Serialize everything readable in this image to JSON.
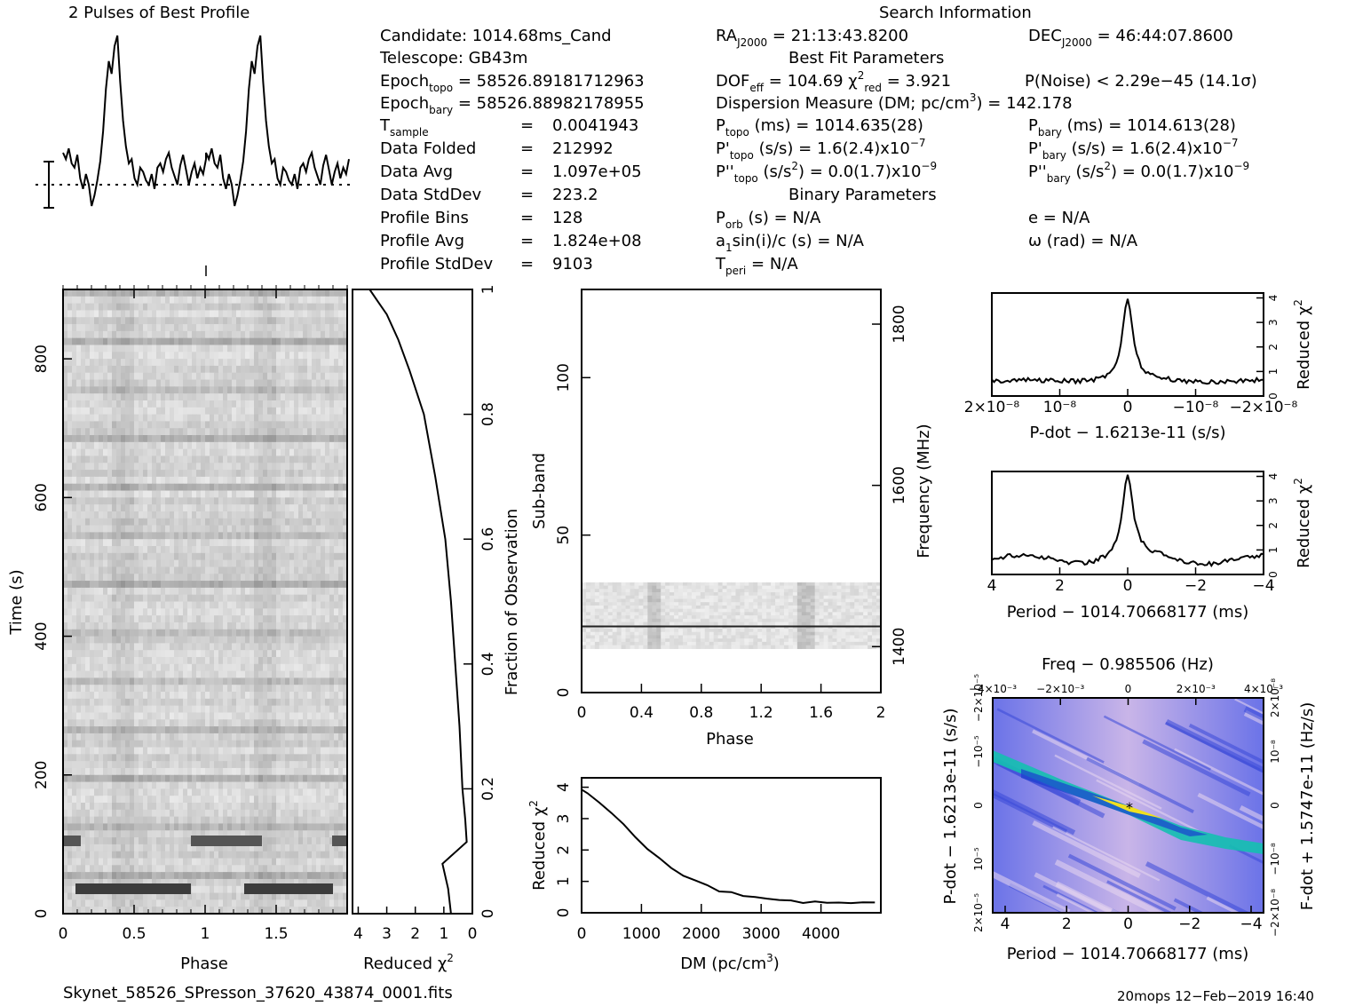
{
  "chart_data": [
    {
      "type": "line",
      "title": "2 Pulses of Best Profile",
      "x": [
        0,
        0.02,
        0.04,
        0.06,
        0.08,
        0.1,
        0.12,
        0.14,
        0.16,
        0.18,
        0.2,
        0.22,
        0.24,
        0.26,
        0.28,
        0.3,
        0.32,
        0.34,
        0.36,
        0.38,
        0.4,
        0.42,
        0.44,
        0.46,
        0.48,
        0.5,
        0.52,
        0.54,
        0.56,
        0.58,
        0.6,
        0.62,
        0.64,
        0.66,
        0.68,
        0.7,
        0.72,
        0.74,
        0.76,
        0.78,
        0.8,
        0.82,
        0.84,
        0.86,
        0.88,
        0.9,
        0.92,
        0.94,
        0.96,
        0.98,
        1.0
      ],
      "values": [
        0.45,
        0.42,
        0.47,
        0.4,
        0.38,
        0.44,
        0.33,
        0.28,
        0.35,
        0.3,
        0.2,
        0.25,
        0.32,
        0.41,
        0.55,
        0.75,
        0.88,
        0.82,
        0.95,
        1.0,
        0.78,
        0.6,
        0.48,
        0.4,
        0.42,
        0.33,
        0.3,
        0.38,
        0.36,
        0.32,
        0.3,
        0.35,
        0.28,
        0.38,
        0.4,
        0.36,
        0.42,
        0.45,
        0.38,
        0.34,
        0.3,
        0.39,
        0.44,
        0.37,
        0.3,
        0.36,
        0.4,
        0.33,
        0.38,
        0.35,
        0.42
      ],
      "pulses": 2
    },
    {
      "type": "heatmap",
      "name": "time-phase",
      "xlabel": "Phase",
      "ylabel": "Time (s)",
      "xticks": [
        "0",
        "0.5",
        "1",
        "1.5"
      ],
      "yticks": [
        "0",
        "200",
        "400",
        "600",
        "800"
      ],
      "xlim": [
        0,
        2
      ],
      "ylim": [
        0,
        900
      ]
    },
    {
      "type": "line",
      "name": "chi2-vs-fraction",
      "xlabel": "Reduced χ²",
      "ylabel": "Fraction of Observation",
      "xticks": [
        "4",
        "3",
        "2",
        "1",
        "0"
      ],
      "yticks": [
        "0",
        "0.2",
        "0.4",
        "0.6",
        "0.8",
        "1"
      ],
      "points": [
        [
          0.75,
          0.0
        ],
        [
          0.85,
          0.04
        ],
        [
          1.05,
          0.08
        ],
        [
          0.2,
          0.115
        ],
        [
          0.25,
          0.15
        ],
        [
          0.35,
          0.2
        ],
        [
          0.45,
          0.3
        ],
        [
          0.6,
          0.4
        ],
        [
          0.75,
          0.5
        ],
        [
          0.95,
          0.6
        ],
        [
          1.3,
          0.7
        ],
        [
          1.7,
          0.8
        ],
        [
          2.2,
          0.87
        ],
        [
          2.6,
          0.92
        ],
        [
          3.0,
          0.96
        ],
        [
          3.3,
          0.98
        ],
        [
          3.6,
          1.0
        ]
      ]
    },
    {
      "type": "heatmap",
      "name": "subband-phase",
      "xlabel": "Phase",
      "ylabel": "Sub-band",
      "y2label": "Frequency (MHz)",
      "xticks": [
        "0",
        "0.4",
        "0.8",
        "1.2",
        "1.6",
        "2"
      ],
      "yticks": [
        "0",
        "50",
        "100"
      ],
      "y2ticks": [
        "1400",
        "1600",
        "1800"
      ]
    },
    {
      "type": "line",
      "name": "chi2-vs-dm",
      "xlabel": "DM (pc/cm³)",
      "ylabel": "Reduced χ²",
      "xticks": [
        "0",
        "1000",
        "2000",
        "3000",
        "4000"
      ],
      "yticks": [
        "0",
        "1",
        "2",
        "3",
        "4"
      ],
      "x": [
        0,
        100,
        300,
        500,
        700,
        900,
        1100,
        1300,
        1500,
        1700,
        1900,
        2100,
        2300,
        2500,
        2700,
        2900,
        3100,
        3300,
        3500,
        3700,
        3900,
        4100,
        4300,
        4500,
        4700,
        4900
      ],
      "values": [
        3.9,
        3.8,
        3.5,
        3.2,
        2.8,
        2.4,
        2.0,
        1.7,
        1.4,
        1.2,
        1.0,
        0.85,
        0.72,
        0.62,
        0.55,
        0.48,
        0.42,
        0.38,
        0.35,
        0.34,
        0.33,
        0.33,
        0.33,
        0.34,
        0.34,
        0.35
      ]
    },
    {
      "type": "line",
      "name": "chi2-vs-pdot",
      "xlabel": "P-dot − 1.6213e-11 (s/s)",
      "ylabel": "Reduced χ²",
      "xticks": [
        "2×10⁻⁸",
        "10⁻⁸",
        "0",
        "−10⁻⁸",
        "−2×10⁻⁸"
      ],
      "yticks": [
        "0",
        "1",
        "2",
        "3",
        "4"
      ]
    },
    {
      "type": "line",
      "name": "chi2-vs-period",
      "xlabel": "Period − 1014.70668177 (ms)",
      "ylabel": "Reduced χ²",
      "xticks": [
        "4",
        "2",
        "0",
        "−2",
        "−4"
      ],
      "yticks": [
        "0",
        "1",
        "2",
        "3",
        "4"
      ]
    },
    {
      "type": "heatmap",
      "name": "period-pdot",
      "title": "Freq − 0.985506 (Hz)",
      "xlabel": "Period − 1014.70668177 (ms)",
      "ylabel": "P-dot − 1.6213e-11 (s/s)",
      "y2label": "F-dot + 1.5747e-11 (Hz/s)",
      "xticks": [
        "4",
        "2",
        "0",
        "−2",
        "−4"
      ],
      "x2ticks": [
        "−4×10⁻³",
        "−2×10⁻³",
        "0",
        "2×10⁻³",
        "4×10⁻³"
      ],
      "yticks": [
        "2×10⁻⁵",
        "10⁻⁵",
        "0",
        "−10⁻⁵",
        "−2×10⁻⁵"
      ],
      "y2ticks": [
        "−2×10⁻⁸",
        "−10⁻⁸",
        "0",
        "10⁻⁸",
        "2×10⁻⁸"
      ]
    }
  ],
  "info": {
    "search_title": "Search Information",
    "candidate": "Candidate:  1014.68ms_Cand",
    "telescope": "Telescope:  GB43m",
    "epoch_topo": "58526.89181712963",
    "epoch_bary": "58526.88982178955",
    "t_sample": "0.0041943",
    "data_folded": "212992",
    "data_avg": "1.097e+05",
    "data_stddev": "223.2",
    "profile_bins": "128",
    "profile_avg": "1.824e+08",
    "profile_stddev": "9103",
    "ra": "= 21:13:43.8200",
    "dec": "= 46:44:07.8600",
    "best_fit": "Best Fit Parameters",
    "dof": "= 104.69",
    "chi2": "= 3.921",
    "pnoise": "P(Noise) < 2.29e−45   (14.1σ)",
    "dm_line": "Dispersion Measure (DM; pc/cm",
    "dm_val": ") = 142.178",
    "ptopo": "(ms) =   1014.635(28)",
    "pbary": "(ms) =   1014.613(28)",
    "pdot_topo": "(s/s) =   1.6(2.4)x10",
    "pdot_bary": "(s/s) =   1.6(2.4)x10",
    "pddot_topo": ") = 0.0(1.7)x10",
    "pddot_bary": ") = 0.0(1.7)x10",
    "binary": "Binary Parameters",
    "porb": "(s) = N/A",
    "e": "e = N/A",
    "a1": "a",
    "omega": "ω (rad) = N/A",
    "tperi": "= N/A"
  },
  "footer": {
    "filename": "Skynet_58526_SPresson_37620_43874_0001.fits",
    "stamp": "20mops 12−Feb−2019 16:40"
  }
}
